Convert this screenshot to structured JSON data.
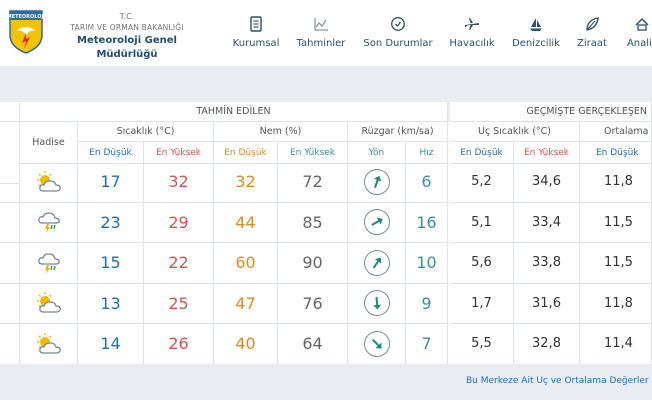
{
  "header": {
    "tc": "T.C.",
    "ministry": "TARIM VE ORMAN BAKANLIĞI",
    "org_name": "Meteoroloji Genel Müdürlüğü",
    "logo_text": "METEOROLOJI"
  },
  "nav": [
    {
      "label": "Kurumsal",
      "icon": "document-icon"
    },
    {
      "label": "Tahminler",
      "icon": "chart-icon"
    },
    {
      "label": "Son Durumlar",
      "icon": "clock-icon"
    },
    {
      "label": "Havacılık",
      "icon": "plane-icon"
    },
    {
      "label": "Denizcilik",
      "icon": "sailboat-icon"
    },
    {
      "label": "Ziraat",
      "icon": "leaf-icon"
    },
    {
      "label": "Analiz",
      "icon": "analysis-icon"
    }
  ],
  "table": {
    "group_forecast": "TAHMİN EDİLEN",
    "group_past": "GEÇMİŞTE GERÇEKLEŞEN",
    "col_hadise": "Hadise",
    "col_temp": "Sıcaklık (°C)",
    "col_humidity": "Nem (%)",
    "col_wind": "Rüzgar (km/sa)",
    "col_extreme": "Uç Sıcaklık (°C)",
    "col_average": "Ortalama",
    "sub_min": "En Düşük",
    "sub_max": "En Yüksek",
    "sub_dir": "Yön",
    "sub_speed": "Hız",
    "rows": [
      {
        "icon": "partly-cloudy-icon",
        "tmin": "17",
        "tmax": "32",
        "hmin": "32",
        "hmax": "72",
        "dir": 20,
        "speed": "6",
        "umin": "5,2",
        "umax": "34,6",
        "avg": "11,8"
      },
      {
        "icon": "thunderstorm-icon",
        "tmin": "23",
        "tmax": "29",
        "hmin": "44",
        "hmax": "85",
        "dir": 60,
        "speed": "16",
        "umin": "5,1",
        "umax": "33,4",
        "avg": "11,5"
      },
      {
        "icon": "thunderstorm-icon",
        "tmin": "15",
        "tmax": "22",
        "hmin": "60",
        "hmax": "90",
        "dir": 35,
        "speed": "10",
        "umin": "5,6",
        "umax": "33,8",
        "avg": "11,5"
      },
      {
        "icon": "partly-cloudy-icon",
        "tmin": "13",
        "tmax": "25",
        "hmin": "47",
        "hmax": "76",
        "dir": 175,
        "speed": "9",
        "umin": "1,7",
        "umax": "31,6",
        "avg": "11,8"
      },
      {
        "icon": "partly-cloudy-icon",
        "tmin": "14",
        "tmax": "26",
        "hmin": "40",
        "hmax": "64",
        "dir": 135,
        "speed": "7",
        "umin": "5,5",
        "umax": "32,8",
        "avg": "11,4"
      }
    ]
  },
  "footnote": "Bu Merkeze Ait Uç ve Ortalama Değerler"
}
